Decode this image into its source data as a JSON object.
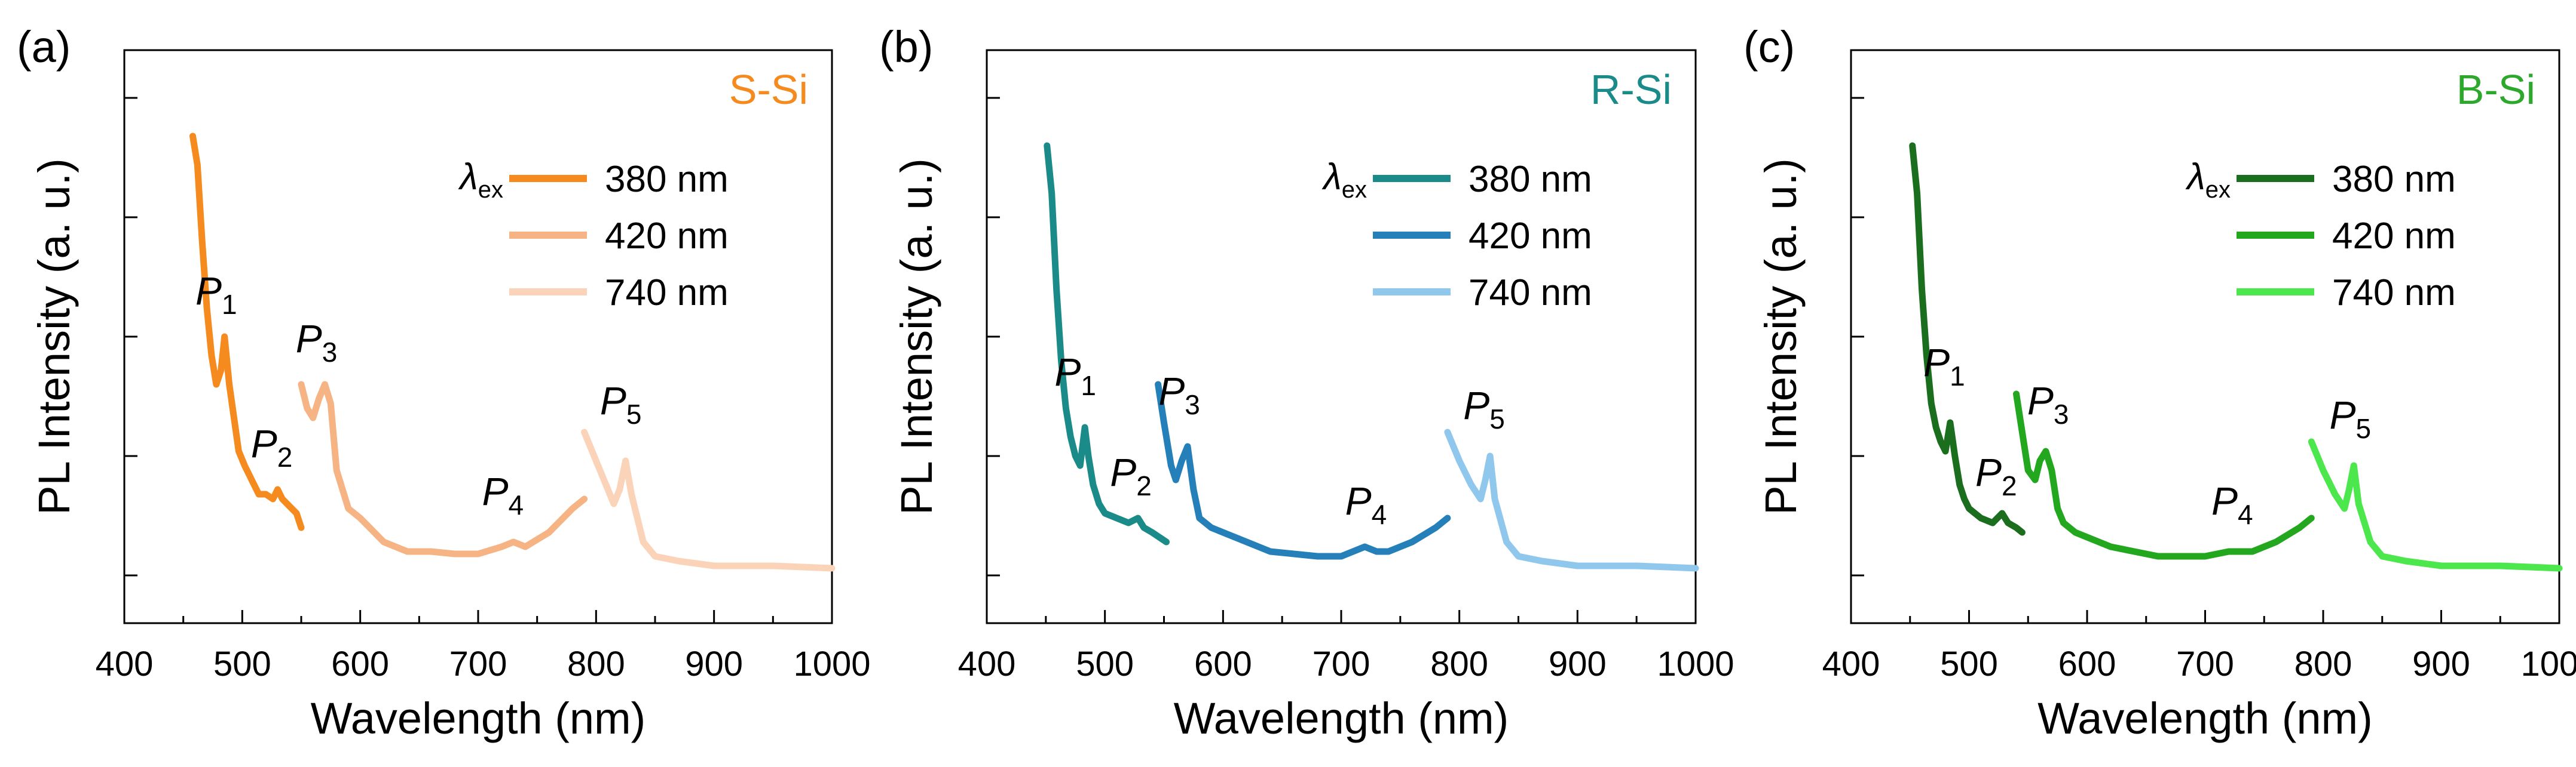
{
  "chart_data": [
    {
      "type": "line",
      "panel_label": "(a)",
      "sample": "S-Si",
      "sample_color": "#F58A1F",
      "xlabel": "Wavelength (nm)",
      "ylabel": "PL Intensity (a. u.)",
      "xlim": [
        400,
        1000
      ],
      "ylim": [
        0,
        1
      ],
      "xticks": [
        "400",
        "500",
        "600",
        "700",
        "800",
        "900",
        "1000"
      ],
      "legend_title_main": "λ",
      "legend_title_sub": "ex",
      "series": [
        {
          "name": "380 nm",
          "color": "#F58A1F",
          "x": [
            458,
            462,
            466,
            470,
            474,
            478,
            482,
            485,
            489,
            493,
            497,
            502,
            508,
            514,
            520,
            526,
            530,
            534,
            538,
            542,
            546,
            550
          ],
          "y": [
            0.92,
            0.86,
            0.7,
            0.56,
            0.46,
            0.4,
            0.43,
            0.5,
            0.4,
            0.33,
            0.26,
            0.23,
            0.2,
            0.17,
            0.17,
            0.16,
            0.18,
            0.16,
            0.15,
            0.14,
            0.13,
            0.1
          ]
        },
        {
          "name": "420 nm",
          "color": "#F6B384",
          "x": [
            550,
            555,
            560,
            565,
            570,
            575,
            580,
            590,
            600,
            620,
            640,
            660,
            680,
            700,
            720,
            730,
            740,
            760,
            780,
            790
          ],
          "y": [
            0.4,
            0.35,
            0.33,
            0.37,
            0.4,
            0.36,
            0.22,
            0.14,
            0.12,
            0.07,
            0.05,
            0.05,
            0.045,
            0.045,
            0.06,
            0.07,
            0.06,
            0.09,
            0.14,
            0.16
          ]
        },
        {
          "name": "740 nm",
          "color": "#FBD3B8",
          "x": [
            790,
            800,
            810,
            815,
            820,
            825,
            830,
            840,
            850,
            870,
            900,
            950,
            1000
          ],
          "y": [
            0.3,
            0.24,
            0.18,
            0.15,
            0.18,
            0.24,
            0.17,
            0.07,
            0.04,
            0.03,
            0.02,
            0.02,
            0.015
          ]
        }
      ],
      "peaks": [
        {
          "name": "P",
          "sub": "1",
          "x": 483,
          "y": 0.53
        },
        {
          "name": "P",
          "sub": "2",
          "x": 530,
          "y": 0.21
        },
        {
          "name": "P",
          "sub": "3",
          "x": 568,
          "y": 0.43
        },
        {
          "name": "P",
          "sub": "4",
          "x": 726,
          "y": 0.11
        },
        {
          "name": "P",
          "sub": "5",
          "x": 826,
          "y": 0.3
        }
      ]
    },
    {
      "type": "line",
      "panel_label": "(b)",
      "sample": "R-Si",
      "sample_color": "#1B8B8A",
      "xlabel": "Wavelength (nm)",
      "ylabel": "PL Intensity (a. u.)",
      "xlim": [
        400,
        1000
      ],
      "ylim": [
        0,
        1
      ],
      "xticks": [
        "400",
        "500",
        "600",
        "700",
        "800",
        "900",
        "1000"
      ],
      "legend_title_main": "λ",
      "legend_title_sub": "ex",
      "series": [
        {
          "name": "380 nm",
          "color": "#1B8B8A",
          "x": [
            451,
            455,
            459,
            463,
            467,
            471,
            475,
            479,
            483,
            486,
            490,
            495,
            500,
            510,
            520,
            528,
            533,
            540,
            546,
            552
          ],
          "y": [
            0.9,
            0.8,
            0.6,
            0.45,
            0.35,
            0.29,
            0.25,
            0.23,
            0.31,
            0.25,
            0.19,
            0.15,
            0.13,
            0.12,
            0.11,
            0.12,
            0.1,
            0.09,
            0.08,
            0.07
          ]
        },
        {
          "name": "420 nm",
          "color": "#2580B9",
          "x": [
            545,
            550,
            556,
            560,
            565,
            570,
            575,
            580,
            590,
            600,
            620,
            640,
            660,
            680,
            700,
            720,
            730,
            740,
            760,
            780,
            790
          ],
          "y": [
            0.4,
            0.32,
            0.23,
            0.2,
            0.24,
            0.27,
            0.18,
            0.12,
            0.1,
            0.09,
            0.07,
            0.05,
            0.045,
            0.04,
            0.04,
            0.06,
            0.05,
            0.05,
            0.07,
            0.1,
            0.12
          ]
        },
        {
          "name": "740 nm",
          "color": "#8FC8EC",
          "x": [
            790,
            800,
            810,
            818,
            822,
            826,
            830,
            840,
            850,
            870,
            900,
            950,
            1000
          ],
          "y": [
            0.3,
            0.24,
            0.19,
            0.16,
            0.2,
            0.25,
            0.16,
            0.07,
            0.04,
            0.03,
            0.02,
            0.02,
            0.015
          ]
        }
      ],
      "peaks": [
        {
          "name": "P",
          "sub": "1",
          "x": 480,
          "y": 0.36
        },
        {
          "name": "P",
          "sub": "2",
          "x": 527,
          "y": 0.15
        },
        {
          "name": "P",
          "sub": "3",
          "x": 568,
          "y": 0.32
        },
        {
          "name": "P",
          "sub": "4",
          "x": 726,
          "y": 0.09
        },
        {
          "name": "P",
          "sub": "5",
          "x": 826,
          "y": 0.29
        }
      ]
    },
    {
      "type": "line",
      "panel_label": "(c)",
      "sample": "B-Si",
      "sample_color": "#2DA82D",
      "xlabel": "Wavelength (nm)",
      "ylabel": "PL Intensity (a. u.)",
      "xlim": [
        400,
        1000
      ],
      "ylim": [
        0,
        1
      ],
      "xticks": [
        "400",
        "500",
        "600",
        "700",
        "800",
        "900",
        "1000"
      ],
      "legend_title_main": "λ",
      "legend_title_sub": "ex",
      "series": [
        {
          "name": "380 nm",
          "color": "#1A6E1E",
          "x": [
            452,
            456,
            460,
            464,
            468,
            472,
            476,
            480,
            484,
            488,
            492,
            496,
            500,
            510,
            520,
            528,
            533,
            540,
            545
          ],
          "y": [
            0.9,
            0.8,
            0.6,
            0.46,
            0.36,
            0.31,
            0.28,
            0.26,
            0.32,
            0.25,
            0.19,
            0.16,
            0.14,
            0.12,
            0.11,
            0.13,
            0.11,
            0.1,
            0.09
          ]
        },
        {
          "name": "420 nm",
          "color": "#22A71E",
          "x": [
            540,
            545,
            550,
            556,
            560,
            565,
            570,
            575,
            580,
            590,
            600,
            620,
            640,
            660,
            680,
            700,
            720,
            730,
            740,
            760,
            780,
            790
          ],
          "y": [
            0.38,
            0.3,
            0.22,
            0.2,
            0.24,
            0.26,
            0.22,
            0.14,
            0.11,
            0.09,
            0.08,
            0.06,
            0.05,
            0.04,
            0.04,
            0.04,
            0.05,
            0.05,
            0.05,
            0.07,
            0.1,
            0.12
          ]
        },
        {
          "name": "740 nm",
          "color": "#4CE74C",
          "x": [
            790,
            800,
            810,
            818,
            822,
            826,
            830,
            840,
            850,
            870,
            900,
            950,
            1000
          ],
          "y": [
            0.28,
            0.22,
            0.17,
            0.14,
            0.18,
            0.23,
            0.15,
            0.07,
            0.04,
            0.03,
            0.02,
            0.02,
            0.015
          ]
        }
      ],
      "peaks": [
        {
          "name": "P",
          "sub": "1",
          "x": 484,
          "y": 0.38
        },
        {
          "name": "P",
          "sub": "2",
          "x": 528,
          "y": 0.15
        },
        {
          "name": "P",
          "sub": "3",
          "x": 572,
          "y": 0.3
        },
        {
          "name": "P",
          "sub": "4",
          "x": 728,
          "y": 0.09
        },
        {
          "name": "P",
          "sub": "5",
          "x": 828,
          "y": 0.27
        }
      ]
    }
  ]
}
